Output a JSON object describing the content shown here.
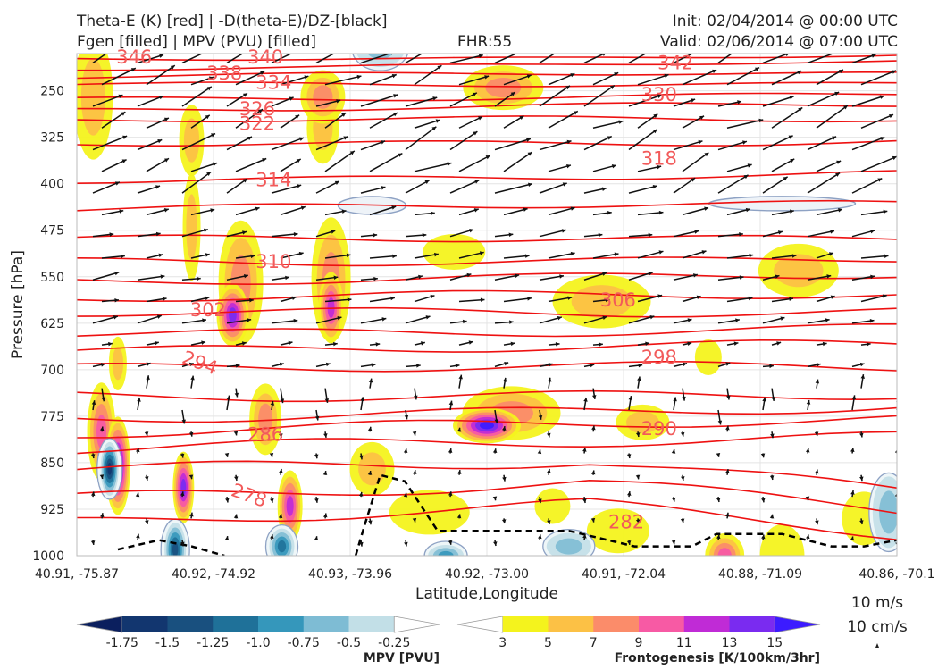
{
  "header": {
    "title_left_1": "Theta-E (K) [red] | -D(theta-E)/DZ-[black]",
    "title_left_2": "Fgen [filled] | MPV (PVU) [filled]",
    "fhr": "FHR:55",
    "init": "Init: 02/04/2014 @ 00:00 UTC",
    "valid": "Valid: 02/06/2014 @ 07:00 UTC"
  },
  "chart_data": {
    "type": "cross-section",
    "ylabel": "Pressure [hPa]",
    "xlabel": "Latitude,Longitude",
    "y_axis": {
      "ticks": [
        "250",
        "325",
        "400",
        "475",
        "550",
        "625",
        "700",
        "775",
        "850",
        "925",
        "1000"
      ],
      "range": [
        1000,
        190
      ],
      "orientation": "inverted"
    },
    "x_axis": {
      "ticks": [
        "40.91, -75.87",
        "40.92, -74.92",
        "40.93, -73.96",
        "40.92, -73.00",
        "40.91, -72.04",
        "40.88, -71.09",
        "40.86, -70.1"
      ]
    },
    "theta_e_contours": {
      "color": "#ee1111",
      "labels": [
        {
          "text": "346",
          "x": 0.07,
          "p": 196
        },
        {
          "text": "340",
          "x": 0.23,
          "p": 196
        },
        {
          "text": "338",
          "x": 0.18,
          "p": 222
        },
        {
          "text": "334",
          "x": 0.24,
          "p": 237
        },
        {
          "text": "342",
          "x": 0.73,
          "p": 205
        },
        {
          "text": "330",
          "x": 0.71,
          "p": 256
        },
        {
          "text": "326",
          "x": 0.22,
          "p": 279
        },
        {
          "text": "322",
          "x": 0.22,
          "p": 303
        },
        {
          "text": "318",
          "x": 0.71,
          "p": 359
        },
        {
          "text": "314",
          "x": 0.24,
          "p": 394
        },
        {
          "text": "310",
          "x": 0.24,
          "p": 526
        },
        {
          "text": "306",
          "x": 0.66,
          "p": 588
        },
        {
          "text": "302",
          "x": 0.16,
          "p": 604
        },
        {
          "text": "298",
          "x": 0.71,
          "p": 680
        },
        {
          "text": "294",
          "x": 0.15,
          "p": 689
        },
        {
          "text": "290",
          "x": 0.71,
          "p": 795
        },
        {
          "text": "286",
          "x": 0.23,
          "p": 805
        },
        {
          "text": "282",
          "x": 0.67,
          "p": 946
        },
        {
          "text": "278",
          "x": 0.21,
          "p": 903
        }
      ]
    },
    "mpv_colorbar": {
      "label": "MPV [PVU]",
      "ticks": [
        "-1.75",
        "-1.5",
        "-1.25",
        "-1.0",
        "-0.75",
        "-0.5",
        "-0.25"
      ],
      "colors": [
        "#0b1f5e",
        "#12366f",
        "#19507f",
        "#1f7199",
        "#3597bb",
        "#7ebcd4",
        "#c2dfe7",
        "#ffffff"
      ]
    },
    "fgen_colorbar": {
      "label": "Frontogenesis [K/100km/3hr]",
      "ticks": [
        "3",
        "5",
        "7",
        "9",
        "11",
        "13",
        "15"
      ],
      "colors": [
        "#ffffff",
        "#f4f31d",
        "#fcc145",
        "#fb8c6a",
        "#f75aa4",
        "#c02bd6",
        "#7a2bf0",
        "#3c1bff"
      ]
    },
    "wind_key": {
      "horizontal": "10 m/s",
      "vertical": "10 cm/s"
    },
    "grid": true
  }
}
